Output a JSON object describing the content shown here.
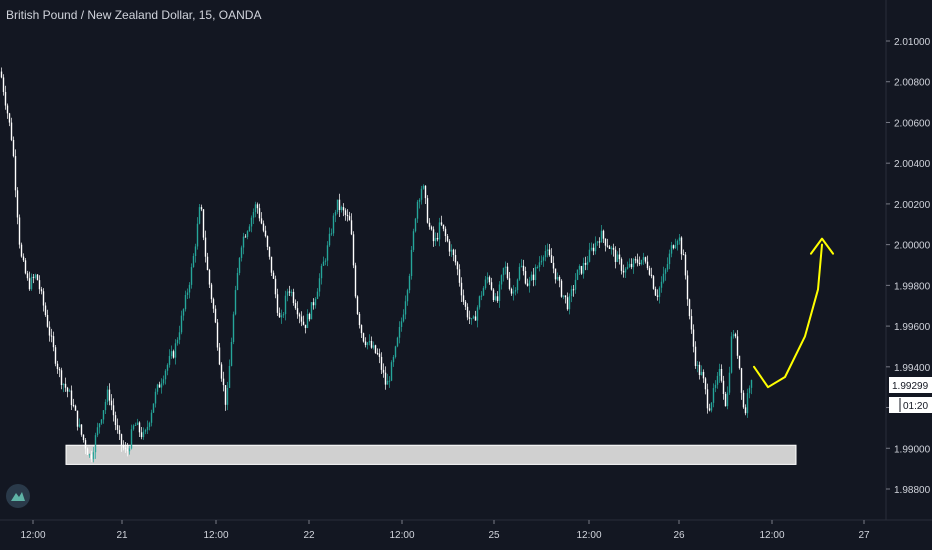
{
  "chart_data": {
    "type": "candlestick",
    "title": "British Pound / New Zealand Dollar, 15, OANDA",
    "ylim": [
      1.987,
      2.012
    ],
    "y_ticks": [
      "2.01000",
      "2.00800",
      "2.00600",
      "2.00400",
      "2.00200",
      "2.00000",
      "1.99800",
      "1.99600",
      "1.99400",
      "1.99200",
      "1.99000",
      "1.98800"
    ],
    "x_tick_labels": [
      "12:00",
      "21",
      "12:00",
      "22",
      "12:00",
      "25",
      "12:00",
      "26",
      "12:00",
      "27"
    ],
    "current_price_label": "1.99299",
    "countdown_label": "01:20",
    "up_color": "#26a69a",
    "down_color": "#ffffff",
    "price_path": [
      [
        0,
        2.0085
      ],
      [
        6,
        2.0068
      ],
      [
        12,
        2.005
      ],
      [
        20,
        1.9995
      ],
      [
        28,
        1.998
      ],
      [
        36,
        1.9985
      ],
      [
        44,
        1.9968
      ],
      [
        52,
        1.995
      ],
      [
        60,
        1.9935
      ],
      [
        70,
        1.9925
      ],
      [
        80,
        1.9908
      ],
      [
        90,
        1.9895
      ],
      [
        100,
        1.9915
      ],
      [
        108,
        1.9928
      ],
      [
        118,
        1.9905
      ],
      [
        126,
        1.9897
      ],
      [
        134,
        1.9912
      ],
      [
        144,
        1.9905
      ],
      [
        154,
        1.9925
      ],
      [
        164,
        1.9938
      ],
      [
        174,
        1.9948
      ],
      [
        184,
        1.997
      ],
      [
        192,
        1.999
      ],
      [
        200,
        2.002
      ],
      [
        206,
        1.999
      ],
      [
        214,
        1.9965
      ],
      [
        220,
        1.994
      ],
      [
        226,
        1.992
      ],
      [
        232,
        1.996
      ],
      [
        240,
        2.0
      ],
      [
        248,
        2.001
      ],
      [
        256,
        2.002
      ],
      [
        264,
        2.0005
      ],
      [
        272,
        1.9985
      ],
      [
        280,
        1.996
      ],
      [
        288,
        1.998
      ],
      [
        296,
        1.997
      ],
      [
        304,
        1.996
      ],
      [
        312,
        1.997
      ],
      [
        320,
        1.9985
      ],
      [
        328,
        2.0
      ],
      [
        336,
        2.002
      ],
      [
        344,
        2.0015
      ],
      [
        350,
        2.001
      ],
      [
        356,
        1.997
      ],
      [
        362,
        1.9955
      ],
      [
        370,
        1.995
      ],
      [
        378,
        1.9945
      ],
      [
        386,
        1.993
      ],
      [
        394,
        1.9945
      ],
      [
        402,
        1.9965
      ],
      [
        410,
        1.999
      ],
      [
        416,
        2.002
      ],
      [
        422,
        2.003
      ],
      [
        428,
        2.001
      ],
      [
        434,
        2.0
      ],
      [
        440,
        2.001
      ],
      [
        448,
        2.0
      ],
      [
        456,
        1.999
      ],
      [
        464,
        1.997
      ],
      [
        472,
        1.996
      ],
      [
        480,
        1.9975
      ],
      [
        488,
        1.9985
      ],
      [
        496,
        1.997
      ],
      [
        504,
        1.999
      ],
      [
        512,
        1.9975
      ],
      [
        520,
        1.999
      ],
      [
        528,
        1.998
      ],
      [
        536,
        1.9988
      ],
      [
        544,
        1.9998
      ],
      [
        552,
        1.999
      ],
      [
        560,
        1.9978
      ],
      [
        568,
        1.997
      ],
      [
        576,
        1.9985
      ],
      [
        584,
        1.999
      ],
      [
        592,
        1.9998
      ],
      [
        600,
        2.0005
      ],
      [
        608,
        2.0
      ],
      [
        616,
        1.9993
      ],
      [
        624,
        1.9987
      ],
      [
        632,
        1.999
      ],
      [
        640,
        1.9993
      ],
      [
        648,
        1.999
      ],
      [
        656,
        1.9975
      ],
      [
        664,
        1.9985
      ],
      [
        672,
        2.0
      ],
      [
        678,
        2.0005
      ],
      [
        684,
        1.999
      ],
      [
        690,
        1.996
      ],
      [
        696,
        1.994
      ],
      [
        702,
        1.9935
      ],
      [
        708,
        1.992
      ],
      [
        714,
        1.9928
      ],
      [
        720,
        1.9938
      ],
      [
        726,
        1.992
      ],
      [
        732,
        1.996
      ],
      [
        738,
        1.9945
      ],
      [
        744,
        1.9915
      ],
      [
        748,
        1.993
      ],
      [
        752,
        1.9938
      ]
    ],
    "annotations": [
      {
        "type": "support_zone",
        "x_start": 66,
        "x_end": 796,
        "y_low": 1.9896,
        "y_high": 1.9901,
        "color": "#d0d0d0"
      },
      {
        "type": "arrow",
        "color": "#ffff00",
        "direction": "up",
        "points": [
          [
            754,
            1.994
          ],
          [
            768,
            1.993
          ],
          [
            785,
            1.9935
          ],
          [
            805,
            1.9955
          ],
          [
            818,
            1.9978
          ],
          [
            822,
            2.0
          ]
        ]
      }
    ]
  }
}
